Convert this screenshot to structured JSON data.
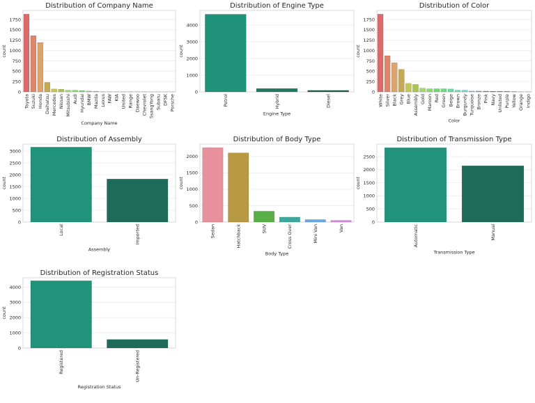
{
  "chart_data": [
    {
      "type": "bar",
      "title": "Distribution of Company Name",
      "xlabel": "Company Name",
      "ylabel": "count",
      "categories": [
        "Toyota",
        "Suzuki",
        "Honda",
        "Daihatsu",
        "Mercedes",
        "Nissan",
        "Mitsubishi",
        "Audi",
        "Hyundai",
        "BMW",
        "Mazda",
        "Lexus",
        "FAW",
        "KIA",
        "United",
        "Range",
        "Daewoo",
        "Chevrolet",
        "SsangYong",
        "Subaru",
        "DFSK",
        "Porsche"
      ],
      "values": [
        1880,
        1360,
        1195,
        230,
        70,
        65,
        40,
        40,
        30,
        20,
        15,
        5,
        4,
        3,
        3,
        2,
        2,
        2,
        1,
        1,
        1,
        1
      ],
      "ylim": [
        0,
        1970
      ],
      "yticks": [
        0,
        250,
        500,
        750,
        1000,
        1250,
        1500,
        1750
      ],
      "grid": true,
      "palette": "husl"
    },
    {
      "type": "bar",
      "title": "Distribution of Engine Type",
      "xlabel": "Engine Type",
      "ylabel": "count",
      "categories": [
        "Petrol",
        "Hybrid",
        "Diesel"
      ],
      "values": [
        4650,
        200,
        90
      ],
      "ylim": [
        0,
        4880
      ],
      "yticks": [
        0,
        1000,
        2000,
        3000,
        4000
      ],
      "grid": true,
      "colors": [
        "#21927a",
        "#1f7a60",
        "#1e5e4a"
      ]
    },
    {
      "type": "bar",
      "title": "Distribution of Color",
      "xlabel": "Color",
      "ylabel": "count",
      "categories": [
        "White",
        "Silver",
        "Black",
        "Grey",
        "Blue",
        "Assembly",
        "Gold",
        "Maroon",
        "Red",
        "Green",
        "Beige",
        "Brown",
        "Burgundy",
        "Turquoise",
        "Bronze",
        "Pink",
        "Navy",
        "Unlisted",
        "Purple",
        "Yellow",
        "Orange",
        "Indigo"
      ],
      "values": [
        1880,
        875,
        705,
        545,
        205,
        180,
        90,
        75,
        75,
        75,
        70,
        40,
        40,
        20,
        20,
        18,
        15,
        15,
        15,
        8,
        3,
        2
      ],
      "ylim": [
        0,
        1970
      ],
      "yticks": [
        0,
        250,
        500,
        750,
        1000,
        1250,
        1500,
        1750
      ],
      "grid": true,
      "palette": "husl"
    },
    {
      "type": "bar",
      "title": "Distribution of Assembly",
      "xlabel": "Assembly",
      "ylabel": "count",
      "categories": [
        "Local",
        "Imported"
      ],
      "values": [
        3170,
        1820
      ],
      "ylim": [
        0,
        3300
      ],
      "yticks": [
        0,
        500,
        1000,
        1500,
        2000,
        2500,
        3000
      ],
      "grid": true,
      "colors": [
        "#21937a",
        "#1f6b5a"
      ]
    },
    {
      "type": "bar",
      "title": "Distribution of Body Type",
      "xlabel": "Body Type",
      "ylabel": "count",
      "categories": [
        "Sedan",
        "Hatchback",
        "SUV",
        "Cross Over",
        "Mini Van",
        "Van"
      ],
      "values": [
        2270,
        2110,
        330,
        150,
        75,
        50
      ],
      "ylim": [
        0,
        2380
      ],
      "yticks": [
        0,
        500,
        1000,
        1500,
        2000
      ],
      "grid": true,
      "colors": [
        "#e8909b",
        "#b89a45",
        "#5aae47",
        "#3fa99e",
        "#6aaae0",
        "#db8ae6"
      ]
    },
    {
      "type": "bar",
      "title": "Distribution of Transmission Type",
      "xlabel": "Transmission Type",
      "ylabel": "count",
      "categories": [
        "Automatic",
        "Manual"
      ],
      "values": [
        2840,
        2150
      ],
      "ylim": [
        0,
        2980
      ],
      "yticks": [
        0,
        500,
        1000,
        1500,
        2000,
        2500
      ],
      "grid": true,
      "colors": [
        "#21937a",
        "#1f6b5a"
      ]
    },
    {
      "type": "bar",
      "title": "Distribution of Registration Status",
      "xlabel": "Registration Status",
      "ylabel": "count",
      "categories": [
        "Registered",
        "Un-Registered"
      ],
      "values": [
        4420,
        560
      ],
      "ylim": [
        0,
        4620
      ],
      "yticks": [
        0,
        1000,
        2000,
        3000,
        4000
      ],
      "grid": true,
      "colors": [
        "#21937a",
        "#1f6b5a"
      ]
    }
  ]
}
